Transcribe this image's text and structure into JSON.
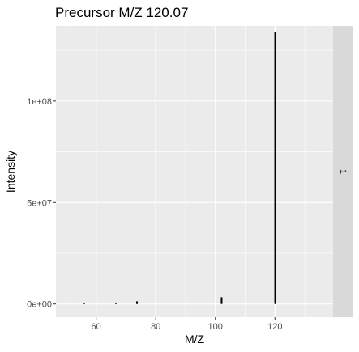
{
  "chart_data": {
    "type": "bar",
    "title": "Precursor M/Z 120.07",
    "xlabel": "M/Z",
    "ylabel": "Intensity",
    "facet_label": "1",
    "xlim": [
      46.5,
      139.5
    ],
    "ylim": [
      -6500000,
      137000000
    ],
    "x_ticks": [
      {
        "value": 60,
        "label": "60"
      },
      {
        "value": 80,
        "label": "80"
      },
      {
        "value": 100,
        "label": "100"
      },
      {
        "value": 120,
        "label": "120"
      }
    ],
    "y_ticks": [
      {
        "value": 0,
        "label": "0e+00"
      },
      {
        "value": 50000000,
        "label": "5e+07"
      },
      {
        "value": 100000000,
        "label": "1e+08"
      }
    ],
    "series": [
      {
        "points": [
          {
            "x": 56.0,
            "y": 150000
          },
          {
            "x": 66.6,
            "y": 400000
          },
          {
            "x": 73.7,
            "y": 1300000
          },
          {
            "x": 102.1,
            "y": 3300000
          },
          {
            "x": 120.07,
            "y": 134000000
          }
        ]
      }
    ],
    "grid": true,
    "panel_color": "#ebebeb",
    "strip_color": "#d9d9d9",
    "bar_color": "#000000"
  }
}
